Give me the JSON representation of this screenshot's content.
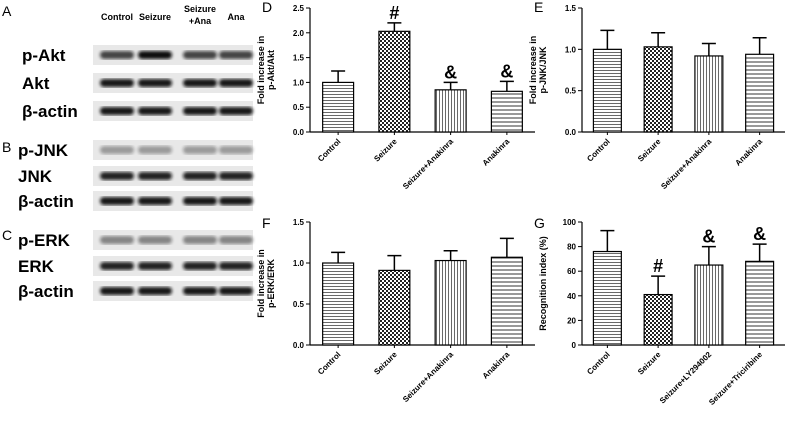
{
  "blot": {
    "panels": [
      "A",
      "B",
      "C"
    ],
    "lanes": [
      "Control",
      "Seizure",
      "Seizure",
      "Ana"
    ],
    "lane_sub": "+Ana",
    "rows": [
      "p-Akt",
      "Akt",
      "β-actin",
      "p-JNK",
      "JNK",
      "β-actin",
      "p-ERK",
      "ERK",
      "β-actin"
    ]
  },
  "chart_data": [
    {
      "type": "bar",
      "panel": "D",
      "ylabel": [
        "Fold increase in",
        "p-Akt/Akt"
      ],
      "categories": [
        "Control",
        "Seizure",
        "Seizure+Anakinra",
        "Anakinra"
      ],
      "values": [
        1.0,
        2.03,
        0.85,
        0.82
      ],
      "errors": [
        0.23,
        0.17,
        0.15,
        0.2
      ],
      "annotations": [
        null,
        "#",
        "&",
        "&"
      ],
      "ylim": [
        0,
        2.5
      ],
      "yticks": [
        {
          "value": 0,
          "label": "0.0"
        },
        0.5,
        {
          "value": 1,
          "label": "1.0"
        },
        1.5,
        {
          "value": 2,
          "label": "2.0"
        },
        2.5
      ]
    },
    {
      "type": "bar",
      "panel": "E",
      "ylabel": [
        "Fold increase in",
        "p-JNK/JNK"
      ],
      "categories": [
        "Control",
        "Seizure",
        "Seizure+Anakinra",
        "Anakinra"
      ],
      "values": [
        1.0,
        1.03,
        0.92,
        0.94
      ],
      "errors": [
        0.23,
        0.17,
        0.15,
        0.2
      ],
      "annotations": [
        null,
        null,
        null,
        null
      ],
      "ylim": [
        0,
        1.5
      ],
      "yticks": [
        {
          "value": 0,
          "label": "0.0"
        },
        0.5,
        {
          "value": 1,
          "label": "1.0"
        },
        1.5
      ]
    },
    {
      "type": "bar",
      "panel": "F",
      "ylabel": [
        "Fold increase in",
        "p-ERK/ERK"
      ],
      "categories": [
        "Control",
        "Seizure",
        "Seizure+Anakinra",
        "Anakinra"
      ],
      "values": [
        1.0,
        0.91,
        1.03,
        1.07
      ],
      "errors": [
        0.13,
        0.18,
        0.12,
        0.23
      ],
      "annotations": [
        null,
        null,
        null,
        null
      ],
      "ylim": [
        0,
        1.5
      ],
      "yticks": [
        {
          "value": 0,
          "label": "0.0"
        },
        0.5,
        {
          "value": 1,
          "label": "1.0"
        },
        1.5
      ]
    },
    {
      "type": "bar",
      "panel": "G",
      "ylabel": [
        "Recognition index (%)"
      ],
      "categories": [
        "Control",
        "Seizure",
        "Seizure+LY294002",
        "Seizure+Triciribine"
      ],
      "values": [
        76,
        41,
        65,
        68
      ],
      "errors": [
        17,
        15,
        15,
        14
      ],
      "annotations": [
        null,
        "#",
        "&",
        "&"
      ],
      "ylim": [
        0,
        100
      ],
      "yticks": [
        0,
        20,
        40,
        60,
        80,
        100
      ]
    }
  ]
}
